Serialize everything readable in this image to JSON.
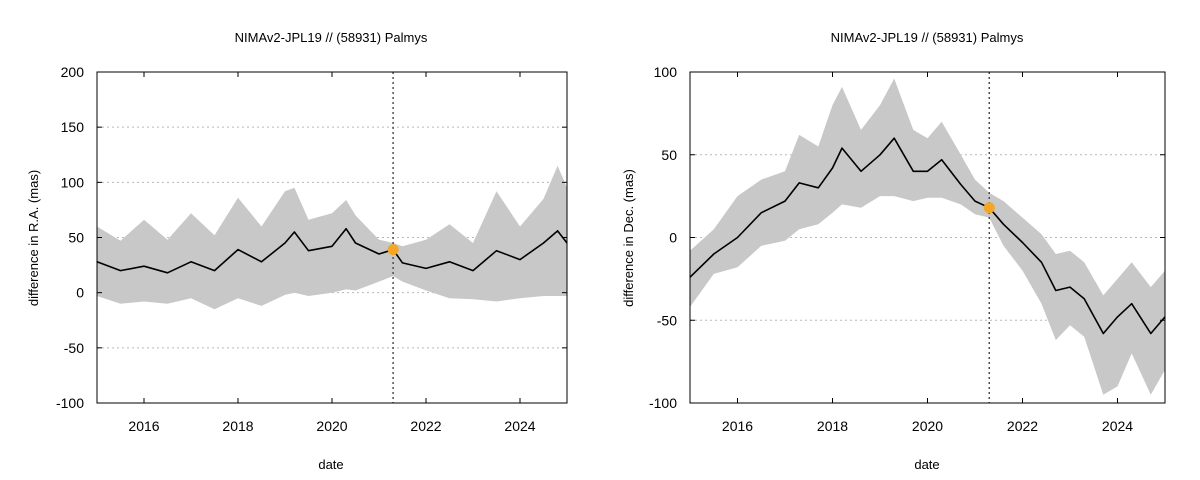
{
  "chart_data": [
    {
      "type": "line",
      "title": "NIMAv2-JPL19 // (58931) Palmys",
      "xlabel": "date",
      "ylabel": "difference in R.A. (mas)",
      "xlim": [
        2015.0,
        2025.0
      ],
      "ylim": [
        -100,
        200
      ],
      "x_ticks": [
        2016,
        2018,
        2020,
        2022,
        2024
      ],
      "x_tick_labels": [
        "2016",
        "2018",
        "2020",
        "2022",
        "2024"
      ],
      "y_ticks": [
        -100,
        -50,
        0,
        50,
        100,
        150,
        200
      ],
      "y_tick_labels": [
        "-100",
        "-50",
        "0",
        "50",
        "100",
        "150",
        "200"
      ],
      "grid": "horizontal dotted",
      "reference_epoch": 2021.3,
      "reference_point": {
        "x": 2021.3,
        "y": 39,
        "color": "#f5a623"
      },
      "line_color": "#000000",
      "band_color": "#c8c8c8",
      "series": [
        {
          "x": [
            2015.0,
            2015.5,
            2016.0,
            2016.5,
            2017.0,
            2017.5,
            2018.0,
            2018.5,
            2019.0,
            2019.2,
            2019.5,
            2020.0,
            2020.3,
            2020.5,
            2021.0,
            2021.3,
            2021.5,
            2022.0,
            2022.5,
            2023.0,
            2023.5,
            2024.0,
            2024.5,
            2024.8,
            2025.0
          ],
          "values": [
            28,
            20,
            24,
            18,
            28,
            20,
            39,
            28,
            45,
            55,
            38,
            42,
            58,
            45,
            35,
            39,
            27,
            22,
            28,
            20,
            38,
            30,
            45,
            56,
            45
          ]
        }
      ],
      "band": {
        "x": [
          2015.0,
          2015.5,
          2016.0,
          2016.5,
          2017.0,
          2017.5,
          2018.0,
          2018.5,
          2019.0,
          2019.2,
          2019.5,
          2020.0,
          2020.3,
          2020.5,
          2021.0,
          2021.3,
          2021.5,
          2022.0,
          2022.5,
          2023.0,
          2023.5,
          2024.0,
          2024.5,
          2024.8,
          2025.0
        ],
        "upper": [
          60,
          47,
          66,
          48,
          72,
          52,
          86,
          60,
          92,
          95,
          66,
          72,
          84,
          70,
          48,
          45,
          42,
          48,
          62,
          45,
          92,
          60,
          85,
          115,
          95
        ],
        "lower": [
          -3,
          -10,
          -8,
          -10,
          -5,
          -15,
          -5,
          -12,
          -2,
          0,
          -3,
          0,
          3,
          2,
          10,
          15,
          10,
          2,
          -5,
          -6,
          -8,
          -5,
          -3,
          -3,
          -3
        ]
      }
    },
    {
      "type": "line",
      "title": "NIMAv2-JPL19 // (58931) Palmys",
      "xlabel": "date",
      "ylabel": "difference in Dec. (mas)",
      "xlim": [
        2015.0,
        2025.0
      ],
      "ylim": [
        -100,
        100
      ],
      "x_ticks": [
        2016,
        2018,
        2020,
        2022,
        2024
      ],
      "x_tick_labels": [
        "2016",
        "2018",
        "2020",
        "2022",
        "2024"
      ],
      "y_ticks": [
        -100,
        -50,
        0,
        50,
        100
      ],
      "y_tick_labels": [
        "-100",
        "-50",
        "0",
        "50",
        "100"
      ],
      "grid": "horizontal dotted",
      "reference_epoch": 2021.3,
      "reference_point": {
        "x": 2021.3,
        "y": 18,
        "color": "#f5a623"
      },
      "line_color": "#000000",
      "band_color": "#c8c8c8",
      "series": [
        {
          "x": [
            2015.0,
            2015.5,
            2016.0,
            2016.5,
            2017.0,
            2017.3,
            2017.7,
            2018.0,
            2018.2,
            2018.6,
            2019.0,
            2019.3,
            2019.7,
            2020.0,
            2020.3,
            2020.7,
            2021.0,
            2021.3,
            2021.6,
            2022.0,
            2022.4,
            2022.7,
            2023.0,
            2023.3,
            2023.7,
            2024.0,
            2024.3,
            2024.7,
            2025.0
          ],
          "values": [
            -24,
            -10,
            0,
            15,
            22,
            33,
            30,
            42,
            54,
            40,
            50,
            60,
            40,
            40,
            47,
            32,
            22,
            18,
            8,
            -3,
            -15,
            -32,
            -30,
            -37,
            -58,
            -48,
            -40,
            -58,
            -48
          ]
        }
      ],
      "band": {
        "x": [
          2015.0,
          2015.5,
          2016.0,
          2016.5,
          2017.0,
          2017.3,
          2017.7,
          2018.0,
          2018.2,
          2018.6,
          2019.0,
          2019.3,
          2019.7,
          2020.0,
          2020.3,
          2020.7,
          2021.0,
          2021.3,
          2021.6,
          2022.0,
          2022.4,
          2022.7,
          2023.0,
          2023.3,
          2023.7,
          2024.0,
          2024.3,
          2024.7,
          2025.0
        ],
        "upper": [
          -8,
          5,
          25,
          35,
          40,
          62,
          55,
          80,
          91,
          65,
          80,
          96,
          65,
          60,
          70,
          50,
          35,
          27,
          22,
          12,
          2,
          -10,
          -8,
          -15,
          -35,
          -25,
          -15,
          -30,
          -20
        ],
        "lower": [
          -42,
          -22,
          -18,
          -5,
          -2,
          5,
          8,
          15,
          20,
          18,
          25,
          25,
          22,
          24,
          24,
          20,
          14,
          12,
          -5,
          -20,
          -40,
          -62,
          -53,
          -60,
          -95,
          -90,
          -70,
          -95,
          -80
        ]
      }
    }
  ]
}
